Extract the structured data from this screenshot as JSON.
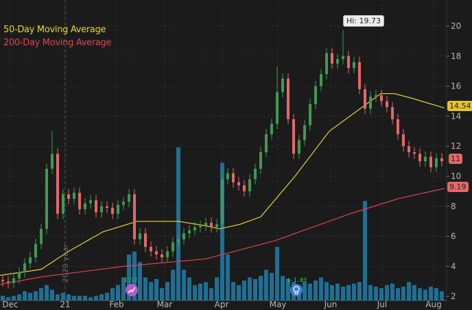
{
  "chart_data": {
    "type": "candlestick",
    "legend": [
      {
        "name": "50-Day Moving Average",
        "color": "#e6d63a"
      },
      {
        "name": "200-Day Moving Average",
        "color": "#e0434f"
      }
    ],
    "legend_placement": "top-left",
    "ylim": [
      2,
      21
    ],
    "y_ticks": [
      "2",
      "4",
      "6",
      "8",
      "10",
      "12",
      "14",
      "16",
      "18",
      "20"
    ],
    "x_ticks": [
      "Dec",
      "21",
      "Feb",
      "Mar",
      "Apr",
      "May",
      "Jun",
      "Jul",
      "Aug"
    ],
    "year_marker": "2020 year",
    "grid": true,
    "colors": {
      "up": "#3f9a52",
      "down": "#e5686b",
      "volume": "#1f6f94",
      "background": "#1b1b1b"
    },
    "high_label": "Hi: 19.73",
    "last_price": "11",
    "ma50_last": "14.54",
    "ma200_last": "9.19",
    "events": [
      {
        "label": "1:17",
        "icon": "split-chart-icon",
        "color": "#b45cc8"
      },
      {
        "label": "$-1.03",
        "icon": "lightbulb-icon",
        "color": "#3a7fd0"
      }
    ],
    "close": [
      3.0,
      2.9,
      3.2,
      3.6,
      4.2,
      4.6,
      5.5,
      6.5,
      10.5,
      11.5,
      7.5,
      8.8,
      8.5,
      8.9,
      7.8,
      8.2,
      8.4,
      7.6,
      8.0,
      7.9,
      7.5,
      8.1,
      8.3,
      8.8,
      5.8,
      6.2,
      5.3,
      5.0,
      4.8,
      4.6,
      5.0,
      5.6,
      5.8,
      6.2,
      6.4,
      6.6,
      6.7,
      6.9,
      6.6,
      6.8,
      9.8,
      10.2,
      9.6,
      9.4,
      9.0,
      9.8,
      10.5,
      11.6,
      12.8,
      13.5,
      15.6,
      16.5,
      13.8,
      11.5,
      12.4,
      13.4,
      14.8,
      16.0,
      16.8,
      18.2,
      17.5,
      17.8,
      18.0,
      17.2,
      17.6,
      15.8,
      14.5,
      15.3,
      15.4,
      15.0,
      14.6,
      13.8,
      12.8,
      12.0,
      11.6,
      11.5,
      11.0,
      11.3,
      10.6,
      11.2,
      11.0
    ],
    "high_spikes": {
      "9": 13.0,
      "50": 17.3,
      "62": 19.73
    },
    "volume": [
      0.3,
      0.2,
      0.3,
      0.4,
      0.6,
      0.5,
      0.6,
      0.8,
      1.0,
      0.7,
      0.4,
      0.5,
      0.4,
      0.3,
      0.3,
      0.3,
      0.2,
      0.3,
      0.4,
      0.5,
      0.8,
      1.0,
      1.5,
      3.0,
      3.2,
      2.5,
      1.5,
      1.2,
      1.4,
      0.8,
      1.2,
      2.0,
      10.0,
      2.0,
      1.5,
      1.0,
      1.1,
      1.2,
      0.8,
      1.5,
      9.0,
      3.0,
      1.2,
      1.0,
      1.3,
      1.5,
      1.4,
      1.6,
      2.0,
      1.8,
      3.5,
      1.6,
      1.4,
      1.2,
      1.0,
      1.2,
      1.1,
      1.3,
      1.5,
      1.2,
      1.0,
      1.1,
      0.9,
      1.0,
      1.1,
      1.2,
      6.5,
      1.0,
      0.9,
      0.8,
      1.0,
      1.1,
      0.8,
      0.9,
      1.2,
      1.0,
      0.8,
      0.7,
      0.9,
      0.8,
      0.6
    ],
    "ma50": [
      [
        0,
        3.4
      ],
      [
        60,
        3.8
      ],
      [
        100,
        5.0
      ],
      [
        150,
        6.3
      ],
      [
        200,
        7.0
      ],
      [
        260,
        7.0
      ],
      [
        300,
        6.7
      ],
      [
        320,
        6.5
      ],
      [
        350,
        6.8
      ],
      [
        380,
        7.3
      ],
      [
        430,
        10.0
      ],
      [
        480,
        13.0
      ],
      [
        540,
        15.0
      ],
      [
        555,
        15.5
      ],
      [
        575,
        15.5
      ],
      [
        600,
        15.2
      ],
      [
        648,
        14.54
      ]
    ],
    "ma200": [
      [
        0,
        2.8
      ],
      [
        60,
        3.3
      ],
      [
        180,
        4.0
      ],
      [
        300,
        4.5
      ],
      [
        400,
        5.7
      ],
      [
        510,
        7.5
      ],
      [
        580,
        8.5
      ],
      [
        648,
        9.19
      ]
    ]
  }
}
